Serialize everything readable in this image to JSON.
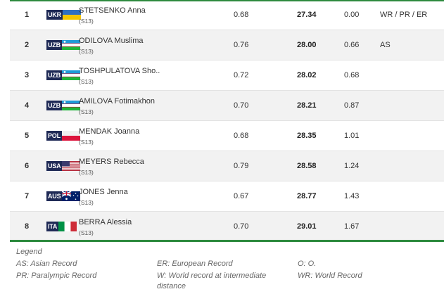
{
  "rows": [
    {
      "rank": "1",
      "code": "UKR",
      "flag": "ukr",
      "name": "STETSENKO Anna",
      "cls": "(S13)",
      "rt": "0.68",
      "result": "27.34",
      "diff": "0.00",
      "record": "WR / PR / ER"
    },
    {
      "rank": "2",
      "code": "UZB",
      "flag": "uzb",
      "name": "ODILOVA Muslima",
      "cls": "(S13)",
      "rt": "0.76",
      "result": "28.00",
      "diff": "0.66",
      "record": "AS"
    },
    {
      "rank": "3",
      "code": "UZB",
      "flag": "uzb",
      "name": "TOSHPULATOVA Sho..",
      "cls": "(S13)",
      "rt": "0.72",
      "result": "28.02",
      "diff": "0.68",
      "record": ""
    },
    {
      "rank": "4",
      "code": "UZB",
      "flag": "uzb",
      "name": "AMILOVA Fotimakhon",
      "cls": "(S13)",
      "rt": "0.70",
      "result": "28.21",
      "diff": "0.87",
      "record": ""
    },
    {
      "rank": "5",
      "code": "POL",
      "flag": "pol",
      "name": "MENDAK Joanna",
      "cls": "(S13)",
      "rt": "0.68",
      "result": "28.35",
      "diff": "1.01",
      "record": ""
    },
    {
      "rank": "6",
      "code": "USA",
      "flag": "usa",
      "name": "MEYERS Rebecca",
      "cls": "(S13)",
      "rt": "0.79",
      "result": "28.58",
      "diff": "1.24",
      "record": ""
    },
    {
      "rank": "7",
      "code": "AUS",
      "flag": "aus",
      "name": "JONES Jenna",
      "cls": "(S13)",
      "rt": "0.67",
      "result": "28.77",
      "diff": "1.43",
      "record": ""
    },
    {
      "rank": "8",
      "code": "ITA",
      "flag": "ita",
      "name": "BERRA Alessia",
      "cls": "(S13)",
      "rt": "0.70",
      "result": "29.01",
      "diff": "1.67",
      "record": ""
    }
  ],
  "legend": {
    "title": "Legend",
    "as": "AS: Asian Record",
    "pr": "PR: Paralympic Record",
    "er": "ER: European Record",
    "w": "W: World record at intermediate distance",
    "o": "O: O.",
    "wr": "WR: World Record"
  },
  "colors": {
    "accent": "#2d8a3e",
    "flag_code_bg": "#1f2a56"
  }
}
